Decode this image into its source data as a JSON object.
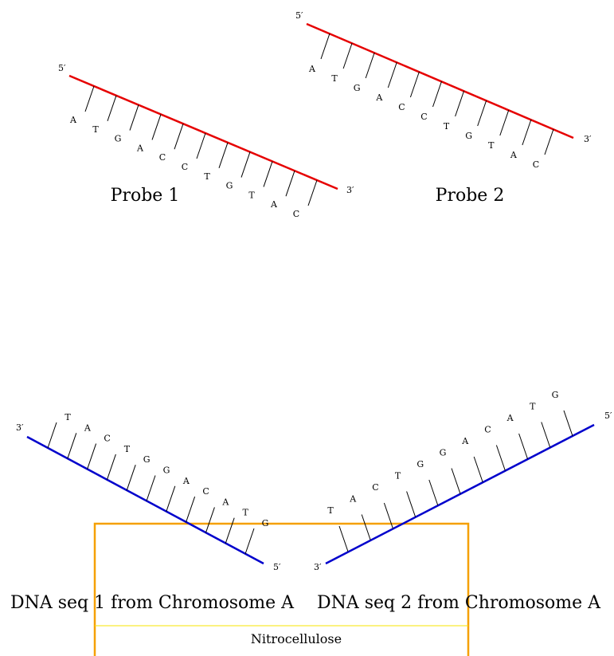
{
  "colors": {
    "probe_strand": "#e60000",
    "dna_strand": "#0000cc",
    "tick": "#000000",
    "membrane_border": "#f5a000",
    "membrane_line": "#f7e600"
  },
  "probes": [
    {
      "label": "Probe 1",
      "end_left": "5′",
      "end_right": "3′",
      "bases": [
        "A",
        "T",
        "G",
        "A",
        "C",
        "C",
        "T",
        "G",
        "T",
        "A",
        "C"
      ]
    },
    {
      "label": "Probe 2",
      "end_left": "5′",
      "end_right": "3′",
      "bases": [
        "A",
        "T",
        "G",
        "A",
        "C",
        "C",
        "T",
        "G",
        "T",
        "A",
        "C"
      ]
    }
  ],
  "dna": [
    {
      "label": "DNA seq 1 from Chromosome A",
      "end_top": "3′",
      "end_bottom": "5′",
      "bases": [
        "T",
        "A",
        "C",
        "T",
        "G",
        "G",
        "A",
        "C",
        "A",
        "T",
        "G"
      ]
    },
    {
      "label": "DNA seq 2 from Chromosome A",
      "end_bottom": "3′",
      "end_top": "5′",
      "bases": [
        "T",
        "A",
        "C",
        "T",
        "G",
        "G",
        "A",
        "C",
        "A",
        "T",
        "G"
      ]
    }
  ],
  "membrane": {
    "label": "Nitrocellulose"
  }
}
